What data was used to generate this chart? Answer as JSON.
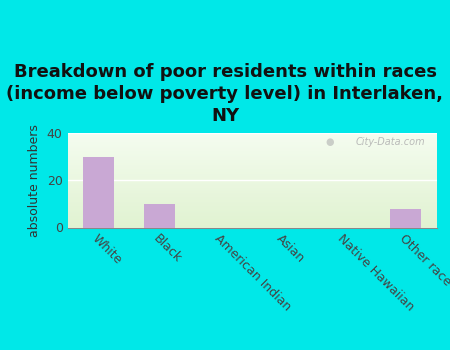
{
  "title": "Breakdown of poor residents within races\n(income below poverty level) in Interlaken,\nNY",
  "categories": [
    "White",
    "Black",
    "American Indian",
    "Asian",
    "Native Hawaiian",
    "Other race"
  ],
  "values": [
    30,
    10,
    0,
    0,
    0,
    8
  ],
  "bar_color": "#c9a8d4",
  "ylabel": "absolute numbers",
  "ylim": [
    0,
    40
  ],
  "yticks": [
    0,
    20,
    40
  ],
  "background_color": "#00e8e8",
  "watermark": "City-Data.com",
  "title_fontsize": 13,
  "ylabel_fontsize": 9,
  "tick_fontsize": 9
}
